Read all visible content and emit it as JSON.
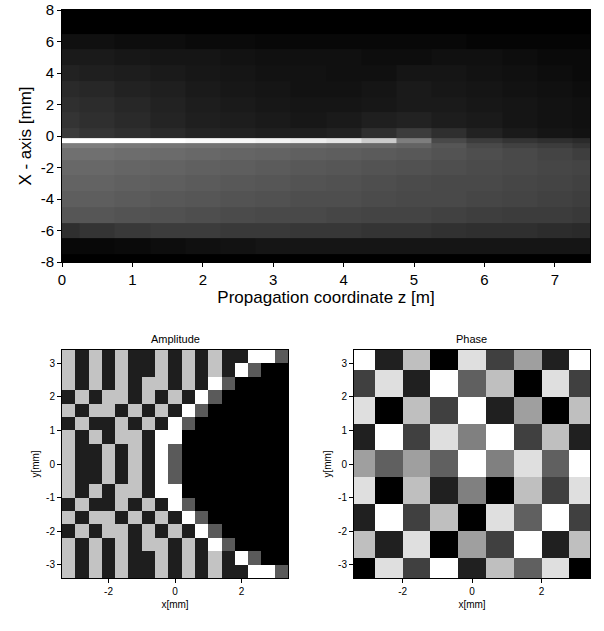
{
  "chart_data": [
    {
      "type": "heatmap",
      "color": "gray",
      "grid": false,
      "x_label": "Propagation coordinate z [m]",
      "y_label": "X - axis [mm]",
      "xlim": [
        0,
        7.5
      ],
      "ylim": [
        -8,
        8
      ],
      "xticks": [
        0,
        1,
        2,
        3,
        4,
        5,
        6,
        7
      ],
      "yticks": [
        -8,
        -6,
        -4,
        -2,
        0,
        2,
        4,
        6,
        8
      ],
      "x": [
        0,
        0.5,
        1,
        1.5,
        2,
        2.5,
        3,
        3.5,
        4,
        4.5,
        5,
        5.5,
        6,
        6.5,
        7,
        7.5
      ],
      "y": [
        -8,
        -7,
        -6,
        -5,
        -4,
        -3,
        -2,
        -1,
        -0.6,
        -0.3,
        0,
        1,
        2,
        3,
        4,
        5,
        6,
        7,
        8
      ],
      "cells": [
        [
          0.02,
          0.02,
          0.02,
          0.02,
          0.02,
          0.02,
          0.02,
          0.02,
          0.02,
          0.02,
          0.02,
          0.02,
          0.02,
          0.02,
          0.02,
          0.02
        ],
        [
          0.05,
          0.05,
          0.06,
          0.07,
          0.08,
          0.09,
          0.1,
          0.1,
          0.1,
          0.1,
          0.1,
          0.1,
          0.1,
          0.1,
          0.1,
          0.1
        ],
        [
          0.2,
          0.22,
          0.24,
          0.25,
          0.25,
          0.24,
          0.24,
          0.23,
          0.23,
          0.22,
          0.22,
          0.21,
          0.2,
          0.2,
          0.19,
          0.18
        ],
        [
          0.35,
          0.35,
          0.34,
          0.33,
          0.32,
          0.31,
          0.3,
          0.3,
          0.29,
          0.28,
          0.28,
          0.27,
          0.26,
          0.25,
          0.25,
          0.24
        ],
        [
          0.38,
          0.38,
          0.37,
          0.36,
          0.35,
          0.34,
          0.33,
          0.32,
          0.32,
          0.31,
          0.3,
          0.3,
          0.29,
          0.28,
          0.27,
          0.26
        ],
        [
          0.4,
          0.4,
          0.39,
          0.38,
          0.37,
          0.36,
          0.35,
          0.34,
          0.33,
          0.32,
          0.31,
          0.3,
          0.3,
          0.29,
          0.28,
          0.27
        ],
        [
          0.42,
          0.42,
          0.41,
          0.4,
          0.39,
          0.38,
          0.37,
          0.36,
          0.35,
          0.34,
          0.33,
          0.32,
          0.31,
          0.3,
          0.29,
          0.28
        ],
        [
          0.45,
          0.45,
          0.44,
          0.43,
          0.42,
          0.41,
          0.4,
          0.39,
          0.38,
          0.37,
          0.36,
          0.34,
          0.32,
          0.3,
          0.28,
          0.26
        ],
        [
          0.5,
          0.5,
          0.48,
          0.47,
          0.46,
          0.45,
          0.44,
          0.43,
          0.42,
          0.42,
          0.4,
          0.35,
          0.3,
          0.27,
          0.25,
          0.22
        ],
        [
          1,
          1,
          1,
          1,
          0.98,
          0.97,
          0.95,
          0.93,
          0.9,
          0.8,
          0.5,
          0.3,
          0.25,
          0.22,
          0.2,
          0.18
        ],
        [
          0.25,
          0.22,
          0.2,
          0.18,
          0.16,
          0.15,
          0.14,
          0.14,
          0.15,
          0.2,
          0.25,
          0.2,
          0.15,
          0.12,
          0.1,
          0.09
        ],
        [
          0.22,
          0.2,
          0.18,
          0.16,
          0.14,
          0.13,
          0.12,
          0.11,
          0.12,
          0.14,
          0.15,
          0.13,
          0.12,
          0.1,
          0.09,
          0.08
        ],
        [
          0.2,
          0.19,
          0.17,
          0.15,
          0.13,
          0.12,
          0.11,
          0.1,
          0.1,
          0.11,
          0.12,
          0.12,
          0.11,
          0.1,
          0.09,
          0.08
        ],
        [
          0.18,
          0.17,
          0.15,
          0.14,
          0.12,
          0.11,
          0.1,
          0.09,
          0.09,
          0.1,
          0.12,
          0.11,
          0.1,
          0.09,
          0.08,
          0.07
        ],
        [
          0.15,
          0.14,
          0.13,
          0.12,
          0.11,
          0.1,
          0.09,
          0.09,
          0.08,
          0.08,
          0.1,
          0.1,
          0.09,
          0.08,
          0.07,
          0.06
        ],
        [
          0.12,
          0.12,
          0.11,
          0.1,
          0.1,
          0.09,
          0.08,
          0.08,
          0.08,
          0.07,
          0.07,
          0.08,
          0.08,
          0.07,
          0.06,
          0.06
        ],
        [
          0.08,
          0.08,
          0.07,
          0.07,
          0.06,
          0.06,
          0.05,
          0.05,
          0.05,
          0.05,
          0.05,
          0.05,
          0.04,
          0.04,
          0.04,
          0.04
        ],
        [
          0.02,
          0.02,
          0.02,
          0.02,
          0.02,
          0.02,
          0.02,
          0.02,
          0.02,
          0.02,
          0.02,
          0.02,
          0.02,
          0.02,
          0.02,
          0.02
        ],
        [
          0.02,
          0.02,
          0.02,
          0.02,
          0.02,
          0.02,
          0.02,
          0.02,
          0.02,
          0.02,
          0.02,
          0.02,
          0.02,
          0.02,
          0.02,
          0.02
        ]
      ]
    },
    {
      "type": "heatmap",
      "color": "gray",
      "grid": false,
      "title": "Amplitude",
      "x_label": "x[mm]",
      "y_label": "y[mm]",
      "xlim": [
        -3.4,
        3.4
      ],
      "ylim": [
        -3.4,
        3.4
      ],
      "xticks": [
        -2,
        0,
        2
      ],
      "yticks": [
        -3,
        -2,
        -1,
        0,
        1,
        2,
        3
      ],
      "x": [
        -3.2,
        -2.8,
        -2.4,
        -2.0,
        -1.6,
        -1.2,
        -0.8,
        -0.4,
        0,
        0.4,
        0.8,
        1.2,
        1.6,
        2.0,
        2.4,
        2.8,
        3.2
      ],
      "y": [
        -3.2,
        -2.8,
        -2.4,
        -2.0,
        -1.6,
        -1.2,
        -0.8,
        -0.4,
        0,
        0.4,
        0.8,
        1.2,
        1.6,
        2.0,
        2.4,
        2.8,
        3.2
      ],
      "cells": [
        [
          0.8,
          0.25,
          0.8,
          0.25,
          0.8,
          0.25,
          0.25,
          0.8,
          0.25,
          0.8,
          0.25,
          0.8,
          0.25,
          0.25,
          1.0,
          1.0,
          0.45
        ],
        [
          0.8,
          0.25,
          0.8,
          0.25,
          0.8,
          0.25,
          0.25,
          0.8,
          0.25,
          0.8,
          0.25,
          0.8,
          0.25,
          1.0,
          0.45,
          0.15,
          0.15
        ],
        [
          0.8,
          0.25,
          0.8,
          0.25,
          0.8,
          0.25,
          0.8,
          0.8,
          0.25,
          0.8,
          0.25,
          1.0,
          0.45,
          0.15,
          0.15,
          0.15,
          0.15
        ],
        [
          0.25,
          0.8,
          0.25,
          0.8,
          0.8,
          0.25,
          0.8,
          0.25,
          0.8,
          0.25,
          1.0,
          0.45,
          0.15,
          0.15,
          0.15,
          0.15,
          0.15
        ],
        [
          0.8,
          0.25,
          0.8,
          0.8,
          0.25,
          0.8,
          0.25,
          0.8,
          0.25,
          1.0,
          0.45,
          0.15,
          0.15,
          0.15,
          0.15,
          0.15,
          0.15
        ],
        [
          0.25,
          0.8,
          0.25,
          0.25,
          0.8,
          0.25,
          0.8,
          0.25,
          1.0,
          0.45,
          0.15,
          0.15,
          0.15,
          0.15,
          0.15,
          0.15,
          0.15
        ],
        [
          0.8,
          0.25,
          0.8,
          0.25,
          0.8,
          0.8,
          0.25,
          1.0,
          1.0,
          0.15,
          0.15,
          0.15,
          0.15,
          0.15,
          0.15,
          0.15,
          0.15
        ],
        [
          0.8,
          0.25,
          0.25,
          0.8,
          0.25,
          0.8,
          0.25,
          1.0,
          0.45,
          0.15,
          0.15,
          0.15,
          0.15,
          0.15,
          0.15,
          0.15,
          0.15
        ],
        [
          0.8,
          0.25,
          0.25,
          0.8,
          0.25,
          0.8,
          0.25,
          1.0,
          0.45,
          0.15,
          0.15,
          0.15,
          0.15,
          0.15,
          0.15,
          0.15,
          0.15
        ],
        [
          0.8,
          0.25,
          0.25,
          0.8,
          0.25,
          0.8,
          0.25,
          1.0,
          0.45,
          0.15,
          0.15,
          0.15,
          0.15,
          0.15,
          0.15,
          0.15,
          0.15
        ],
        [
          0.8,
          0.25,
          0.8,
          0.25,
          0.8,
          0.8,
          0.25,
          1.0,
          1.0,
          0.15,
          0.15,
          0.15,
          0.15,
          0.15,
          0.15,
          0.15,
          0.15
        ],
        [
          0.25,
          0.8,
          0.25,
          0.25,
          0.8,
          0.25,
          0.8,
          0.25,
          1.0,
          0.45,
          0.15,
          0.15,
          0.15,
          0.15,
          0.15,
          0.15,
          0.15
        ],
        [
          0.8,
          0.25,
          0.8,
          0.8,
          0.25,
          0.8,
          0.25,
          0.8,
          0.25,
          1.0,
          0.45,
          0.15,
          0.15,
          0.15,
          0.15,
          0.15,
          0.15
        ],
        [
          0.25,
          0.8,
          0.25,
          0.8,
          0.8,
          0.25,
          0.8,
          0.25,
          0.8,
          0.25,
          1.0,
          0.45,
          0.15,
          0.15,
          0.15,
          0.15,
          0.15
        ],
        [
          0.8,
          0.25,
          0.8,
          0.25,
          0.8,
          0.25,
          0.8,
          0.8,
          0.25,
          0.8,
          0.25,
          1.0,
          0.45,
          0.15,
          0.15,
          0.15,
          0.15
        ],
        [
          0.8,
          0.25,
          0.8,
          0.25,
          0.8,
          0.25,
          0.25,
          0.8,
          0.25,
          0.8,
          0.25,
          0.8,
          0.25,
          1.0,
          0.45,
          0.15,
          0.15
        ],
        [
          0.8,
          0.25,
          0.8,
          0.25,
          0.8,
          0.25,
          0.25,
          0.8,
          0.25,
          0.8,
          0.25,
          0.8,
          0.25,
          0.25,
          1.0,
          1.0,
          0.45
        ]
      ]
    },
    {
      "type": "heatmap",
      "color": "gray",
      "grid": false,
      "title": "Phase",
      "x_label": "x[mm]",
      "y_label": "y[mm]",
      "xlim": [
        -3.4,
        3.4
      ],
      "ylim": [
        -3.4,
        3.4
      ],
      "xticks": [
        -2,
        0,
        2
      ],
      "yticks": [
        -3,
        -2,
        -1,
        0,
        1,
        2,
        3
      ],
      "x": [
        -3.2,
        -2.4,
        -1.6,
        -0.8,
        0,
        0.8,
        1.6,
        2.4,
        3.2
      ],
      "y": [
        -3.2,
        -2.4,
        -1.6,
        -0.8,
        0,
        0.8,
        1.6,
        2.4,
        3.2
      ],
      "cells": [
        [
          0.1,
          0.8,
          0.3,
          0.9,
          0.2,
          0.7,
          0.4,
          0.8,
          0.1
        ],
        [
          0.7,
          0.2,
          0.8,
          0.1,
          0.6,
          0.3,
          0.9,
          0.2,
          0.7
        ],
        [
          0.2,
          0.9,
          0.3,
          0.7,
          0.1,
          0.8,
          0.4,
          0.9,
          0.3
        ],
        [
          0.8,
          0.1,
          0.7,
          0.2,
          0.5,
          0.1,
          0.7,
          0.3,
          0.8
        ],
        [
          0.6,
          0.4,
          0.6,
          0.4,
          0.9,
          0.5,
          0.8,
          0.4,
          0.9
        ],
        [
          0.2,
          0.9,
          0.3,
          0.8,
          0.5,
          0.9,
          0.3,
          0.7,
          0.2
        ],
        [
          0.8,
          0.1,
          0.7,
          0.3,
          0.9,
          0.2,
          0.6,
          0.1,
          0.7
        ],
        [
          0.3,
          0.8,
          0.2,
          0.9,
          0.4,
          0.7,
          0.1,
          0.8,
          0.3
        ],
        [
          0.9,
          0.2,
          0.7,
          0.1,
          0.8,
          0.3,
          0.6,
          0.2,
          0.9
        ]
      ]
    }
  ]
}
